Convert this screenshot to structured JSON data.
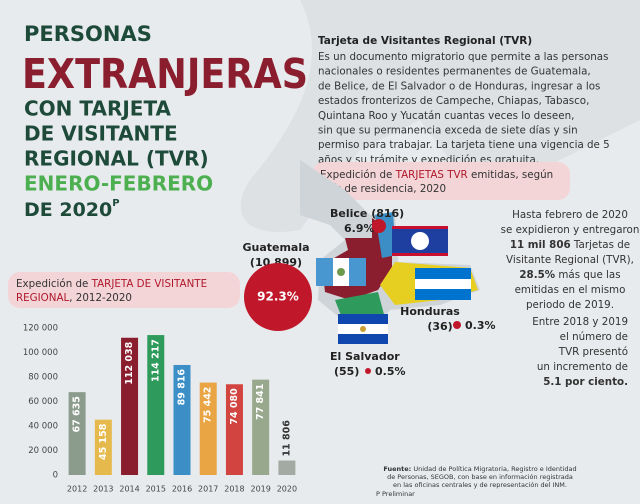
{
  "title": {
    "line1": "PERSONAS",
    "line2": "EXTRANJERAS",
    "line3": "CON TARJETA",
    "line4": "DE VISITANTE",
    "line5": "REGIONAL (TVR)",
    "line6": "ENERO-FEBRERO",
    "line7": "DE 2020",
    "sup": "P"
  },
  "info": {
    "heading": "Tarjeta de Visitantes Regional (TVR)",
    "lines": [
      "Es un documento migratorio que permite a las personas",
      "nacionales o residentes permanentes de Guatemala,",
      "de Belice, de El Salvador o de Honduras, ingresar a los",
      "estados fronterizos de Campeche, Chiapas, Tabasco,",
      "Quintana Roo y Yucatán cuantas veces lo deseen,",
      "sin que su permanencia exceda de siete días y sin",
      "permiso para trabajar. La tarjeta tiene una vigencia de 5",
      "años y su trámite y expedición es gratuita."
    ]
  },
  "map_header": {
    "a": "Expedición de ",
    "b": "TARJETAS TVR",
    "c": " emitidas, según",
    "d": "país de residencia, 2020"
  },
  "countries": {
    "belice": {
      "name": "Belice (816)",
      "pct": "6.9%"
    },
    "guatemala": {
      "name": "Guatemala",
      "count": "(10 899)",
      "pct": "92.3%"
    },
    "honduras": {
      "name": "Honduras",
      "count": "(36)",
      "pct": "0.3%"
    },
    "salvador": {
      "name": "El Salvador",
      "count": "(55)",
      "pct": "0.5%"
    }
  },
  "summary": {
    "l1": "Hasta febrero de 2020",
    "l2": "se expidieron y entregaron",
    "l3a": "11 mil 806",
    "l3b": " Tarjetas de",
    "l4": "Visitante Regional (TVR),",
    "l5a": "28.5%",
    "l5b": " más que las",
    "l6": "emitidas en el mismo",
    "l7": "periodo de 2019.",
    "m1": "Entre 2018 y 2019",
    "m2": "el número de",
    "m3": "TVR presentó",
    "m4": "un incremento de",
    "m5": "5.1 por ciento."
  },
  "source": {
    "label": "Fuente:",
    "l1": " Unidad de Política Migratoria, Registro e Identidad",
    "l2": "de Personas, SEGOB, con base en información registrada",
    "l3": "en las oficinas centrales y de representación del INM.",
    "note": "P Preliminar"
  },
  "chart_data": {
    "type": "bar",
    "title_a": "Expedición de ",
    "title_b": "TARJETA DE VISITANTE",
    "title_c": "REGIONAL",
    "title_d": ", 2012-2020",
    "categories": [
      "2012",
      "2013",
      "2014",
      "2015",
      "2016",
      "2017",
      "2018",
      "2019",
      "2020"
    ],
    "values": [
      67635,
      45158,
      112038,
      114217,
      89816,
      75442,
      74080,
      77841,
      11806
    ],
    "value_labels": [
      "67 635",
      "45 158",
      "112 038",
      "114 217",
      "89 816",
      "75 442",
      "74 080",
      "77 841",
      "11 806"
    ],
    "colors": [
      "#8c9c8c",
      "#e6b94c",
      "#8b1e2e",
      "#2e9a5c",
      "#3b8fc6",
      "#e9a443",
      "#d2443f",
      "#98a88c",
      "#a3aaa3"
    ],
    "ylim": [
      0,
      120000
    ],
    "yticks": [
      0,
      {
        "value": 20000,
        "label": "20 000"
      },
      {
        "value": 40000,
        "label": "40 000"
      },
      {
        "value": 60000,
        "label": "60 000"
      },
      {
        "value": 80000,
        "label": "80 000"
      },
      {
        "value": 100000,
        "label": "100 000"
      },
      {
        "value": 120000,
        "label": "120 000"
      }
    ],
    "grid": false
  }
}
